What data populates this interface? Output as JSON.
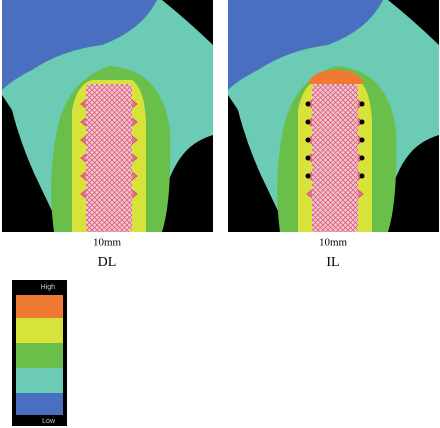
{
  "panels": [
    {
      "scale": "10mm",
      "label": "DL"
    },
    {
      "scale": "10mm",
      "label": "IL"
    }
  ],
  "legend": {
    "high": "High",
    "low": "Low"
  }
}
